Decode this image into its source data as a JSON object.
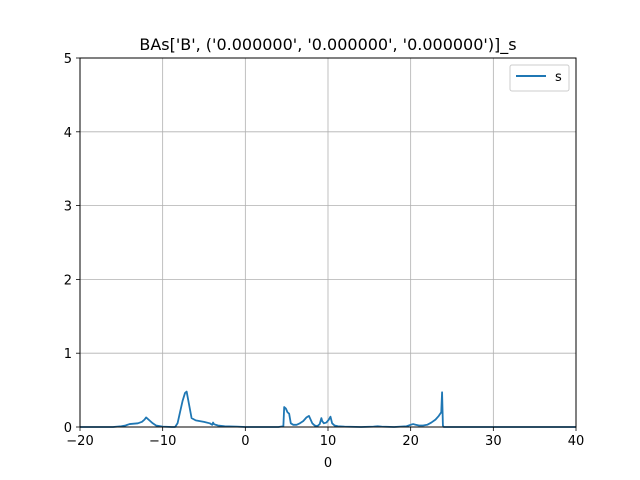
{
  "chart_data": {
    "type": "line",
    "title": "BAs['B', ('0.000000', '0.000000', '0.000000')]_s",
    "xlabel": "0",
    "ylabel": "",
    "xlim": [
      -20,
      40
    ],
    "ylim": [
      0,
      5
    ],
    "xticks": [
      -20,
      -10,
      0,
      10,
      20,
      30,
      40
    ],
    "yticks": [
      0,
      1,
      2,
      3,
      4,
      5
    ],
    "grid": true,
    "legend_position": "top-right",
    "series_color": "#1f77b4",
    "series": [
      {
        "name": "s",
        "x": [
          -20,
          -16,
          -15,
          -14.5,
          -14,
          -13,
          -12.5,
          -12.2,
          -12,
          -11.6,
          -11.2,
          -10.8,
          -10,
          -8.9,
          -8.5,
          -8.2,
          -7.9,
          -7.6,
          -7.3,
          -7.1,
          -6.8,
          -6.5,
          -6,
          -5,
          -4.3,
          -4,
          -3.9,
          -3.8,
          -3.6,
          -3.3,
          -2.5,
          -1,
          0,
          2,
          4,
          4.6,
          4.7,
          4.9,
          5.1,
          5.3,
          5.5,
          5.8,
          6.2,
          6.6,
          7,
          7.4,
          7.7,
          7.9,
          8.1,
          8.4,
          8.7,
          9,
          9.2,
          9.3,
          9.5,
          9.8,
          10.1,
          10.3,
          10.5,
          10.8,
          11.2,
          12,
          14,
          15.5,
          16,
          16.5,
          18,
          19.5,
          20,
          20.3,
          20.6,
          21,
          21.5,
          22,
          22.5,
          23,
          23.4,
          23.7,
          23.8,
          23.9,
          24,
          25,
          30,
          35,
          40
        ],
        "y": [
          0,
          0,
          0.01,
          0.02,
          0.04,
          0.05,
          0.07,
          0.1,
          0.13,
          0.09,
          0.05,
          0.02,
          0.005,
          0,
          0,
          0.05,
          0.2,
          0.35,
          0.46,
          0.48,
          0.3,
          0.12,
          0.09,
          0.07,
          0.05,
          0.03,
          0.06,
          0.04,
          0.03,
          0.02,
          0.01,
          0.005,
          0,
          0,
          0,
          0.01,
          0.27,
          0.25,
          0.2,
          0.18,
          0.05,
          0.03,
          0.03,
          0.05,
          0.08,
          0.13,
          0.15,
          0.1,
          0.05,
          0.02,
          0.01,
          0.04,
          0.12,
          0.08,
          0.05,
          0.06,
          0.1,
          0.14,
          0.05,
          0.02,
          0.01,
          0.005,
          0,
          0.005,
          0.01,
          0.005,
          0,
          0.01,
          0.03,
          0.04,
          0.03,
          0.02,
          0.02,
          0.03,
          0.06,
          0.1,
          0.15,
          0.2,
          0.47,
          0.02,
          0,
          0,
          0,
          0,
          0
        ]
      }
    ]
  }
}
